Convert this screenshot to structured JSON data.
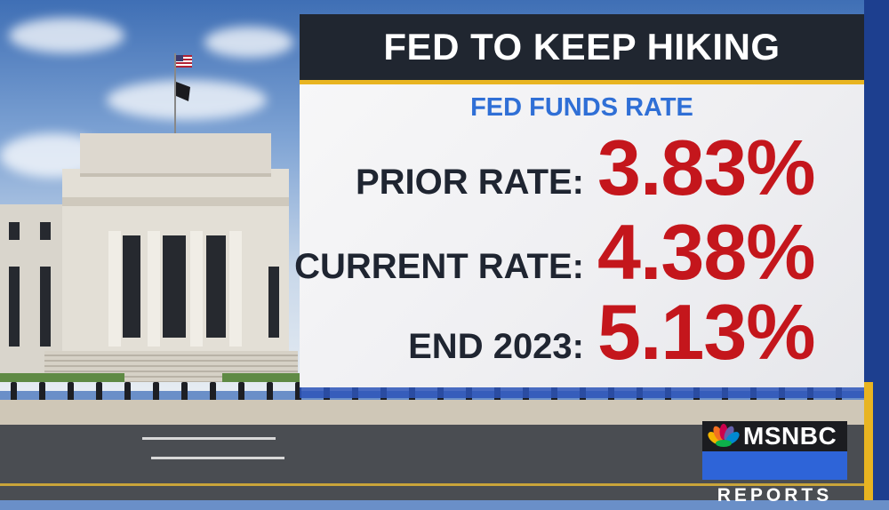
{
  "graphic": {
    "title": "FED TO KEEP HIKING",
    "subtitle": "FED FUNDS RATE",
    "rows": [
      {
        "label": "PRIOR RATE:",
        "value": "3.83%"
      },
      {
        "label": "CURRENT RATE:",
        "value": "4.38%"
      },
      {
        "label": "END 2023:",
        "value": "5.13%"
      }
    ]
  },
  "logo": {
    "brand": "MSNBC",
    "show": "REPORTS",
    "icon": "peacock-icon"
  },
  "colors": {
    "title_bg": "#202630",
    "gold": "#e8b421",
    "subtitle": "#2f6fd6",
    "value": "#c4161c",
    "label": "#1f2531"
  }
}
